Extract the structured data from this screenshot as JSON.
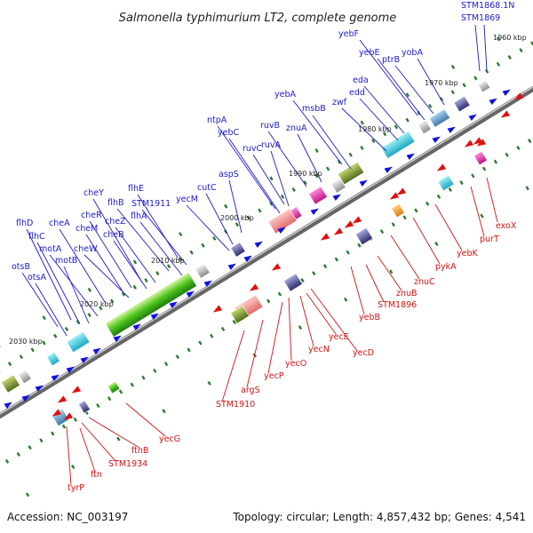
{
  "title": "Salmonella typhimurium LT2, complete genome",
  "footer": {
    "accession": "Accession: NC_003197",
    "topology": "Topology: circular; Length: 4,857,432 bp; Genes: 4,541"
  },
  "kbp_markers": [
    "1960 kbp",
    "1970 kbp",
    "1980 kbp",
    "1990 kbp",
    "2000 kbp",
    "2010 kbp",
    "2020 kbp",
    "2030 kbp"
  ],
  "genes_top": [
    "STM1868.1N",
    "STM1869",
    "yebF",
    "yebE",
    "ptrB",
    "yobA",
    "eda",
    "edd",
    "zwf",
    "msbB",
    "yebA",
    "ruvB",
    "znuA",
    "ruvC",
    "ruvA",
    "ntpA",
    "yebC",
    "aspS",
    "cutC",
    "yecM",
    "flhE",
    "STM1911",
    "flhB",
    "flhA",
    "cheY",
    "cheR",
    "cheZ",
    "cheB",
    "flhD",
    "cheA",
    "cheM",
    "flhC",
    "motA",
    "cheW",
    "motB",
    "otsB",
    "otsA"
  ],
  "genes_bottom": [
    "exoX",
    "purT",
    "yebK",
    "pykA",
    "znuC",
    "znuB",
    "STM1896",
    "yebB",
    "yecD",
    "yecE",
    "yecN",
    "yecO",
    "yecP",
    "argS",
    "STM1910",
    "yecG",
    "ftnB",
    "STM1934",
    "ftn",
    "tyrP"
  ]
}
